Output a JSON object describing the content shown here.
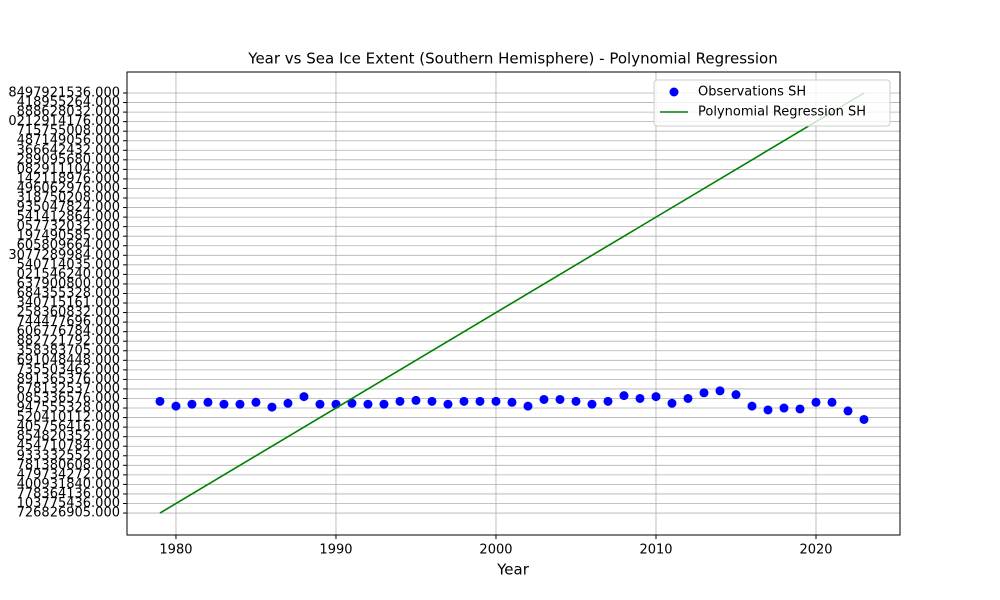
{
  "chart_data": {
    "type": "scatter",
    "title": "Year vs Sea Ice Extent (Southern Hemisphere) - Polynomial Regression",
    "x_label": "Year",
    "xlim": [
      1976.94,
      2025.25
    ],
    "xticks": [
      1980,
      1990,
      2000,
      2010,
      2020
    ],
    "ylim": [
      -2.3,
      46.2
    ],
    "yticks": [
      {
        "value": 0,
        "label": "726826905.000"
      },
      {
        "value": 1,
        "label": "103775436.000"
      },
      {
        "value": 2,
        "label": "778364136.000"
      },
      {
        "value": 3,
        "label": "400931840.000"
      },
      {
        "value": 4,
        "label": "479734272.000"
      },
      {
        "value": 5,
        "label": "781380608.000"
      },
      {
        "value": 6,
        "label": "933332552.000"
      },
      {
        "value": 7,
        "label": "454710784.000"
      },
      {
        "value": 8,
        "label": "854820352.000"
      },
      {
        "value": 9,
        "label": "405756416.000"
      },
      {
        "value": 10,
        "label": "520410112.000"
      },
      {
        "value": 11,
        "label": "947555328.000"
      },
      {
        "value": 12,
        "label": "085336576.000"
      },
      {
        "value": 13,
        "label": "678132537.000"
      },
      {
        "value": 14,
        "label": "891365376.000"
      },
      {
        "value": 15,
        "label": "735503462.000"
      },
      {
        "value": 16,
        "label": "691048448.000"
      },
      {
        "value": 17,
        "label": "358383705.000"
      },
      {
        "value": 18,
        "label": "882721792.000"
      },
      {
        "value": 19,
        "label": "606776784.000"
      },
      {
        "value": 20,
        "label": "744477696.000"
      },
      {
        "value": 21,
        "label": "258360832.000"
      },
      {
        "value": 22,
        "label": "340715161.000"
      },
      {
        "value": 23,
        "label": "684355328.000"
      },
      {
        "value": 24,
        "label": "637900800.000"
      },
      {
        "value": 25,
        "label": "021546240.000"
      },
      {
        "value": 26,
        "label": "540714035.000"
      },
      {
        "value": 27,
        "label": "3077289984.000"
      },
      {
        "value": 28,
        "label": "605809664.000"
      },
      {
        "value": 29,
        "label": "197490585.000"
      },
      {
        "value": 30,
        "label": "057732032.000"
      },
      {
        "value": 31,
        "label": "541412864.000"
      },
      {
        "value": 32,
        "label": "935047824.000"
      },
      {
        "value": 33,
        "label": "318750208.000"
      },
      {
        "value": 34,
        "label": "496062976.000"
      },
      {
        "value": 35,
        "label": "142118976.000"
      },
      {
        "value": 36,
        "label": "082911104.000"
      },
      {
        "value": 37,
        "label": "289095680.000"
      },
      {
        "value": 38,
        "label": "366642432.000"
      },
      {
        "value": 39,
        "label": "487149056.000"
      },
      {
        "value": 40,
        "label": "715755008.000"
      },
      {
        "value": 41,
        "label": "0212914176.000"
      },
      {
        "value": 42,
        "label": "888628032.000"
      },
      {
        "value": 43,
        "label": "418955264.000"
      },
      {
        "value": 44,
        "label": "8497921536.000"
      }
    ],
    "grid": true,
    "legend": "upper right",
    "series": [
      {
        "name": "Observations SH",
        "color": "#0000ff",
        "type": "scatter",
        "x": [
          1979,
          1980,
          1981,
          1982,
          1983,
          1984,
          1985,
          1986,
          1987,
          1988,
          1989,
          1990,
          1991,
          1992,
          1993,
          1994,
          1995,
          1996,
          1997,
          1998,
          1999,
          2000,
          2001,
          2002,
          2003,
          2004,
          2005,
          2006,
          2007,
          2008,
          2009,
          2010,
          2011,
          2012,
          2013,
          2014,
          2015,
          2016,
          2017,
          2018,
          2019,
          2020,
          2021,
          2022,
          2023
        ],
        "values": [
          11.7,
          11.2,
          11.4,
          11.6,
          11.4,
          11.4,
          11.6,
          11.1,
          11.5,
          12.2,
          11.4,
          11.4,
          11.5,
          11.4,
          11.4,
          11.7,
          11.8,
          11.7,
          11.4,
          11.7,
          11.7,
          11.7,
          11.6,
          11.2,
          11.9,
          11.9,
          11.7,
          11.4,
          11.7,
          12.3,
          12.0,
          12.2,
          11.5,
          12.0,
          12.6,
          12.8,
          12.4,
          11.2,
          10.8,
          11.0,
          10.9,
          11.6,
          11.6,
          10.7,
          9.8
        ]
      },
      {
        "name": "Polynomial Regression SH",
        "color": "#008000",
        "type": "line",
        "x": [
          1979,
          2023
        ],
        "values": [
          0,
          44
        ]
      }
    ]
  }
}
